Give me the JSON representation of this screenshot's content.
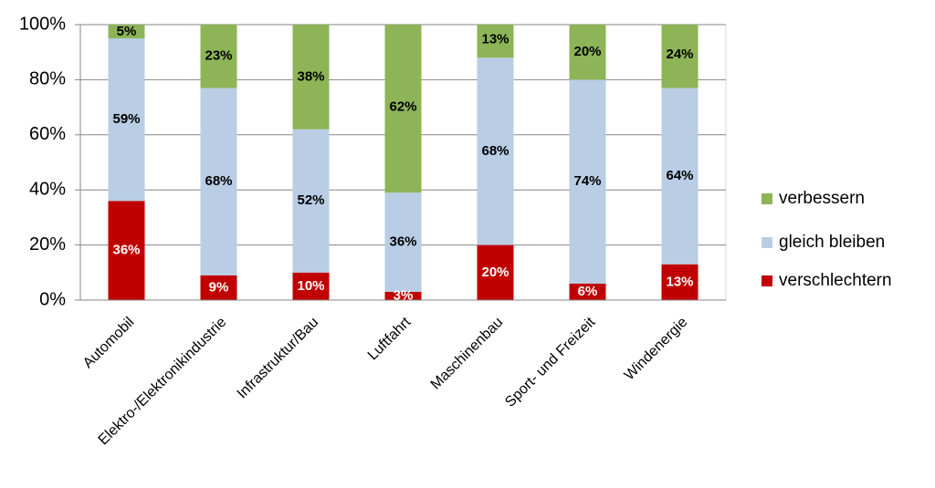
{
  "chart_data": {
    "type": "stacked_bar",
    "categories": [
      "Automobil",
      "Elektro-/Elektronikindustrie",
      "Infrastruktur/Bau",
      "Luftfahrt",
      "Maschinenbau",
      "Sport- und Freizeit",
      "Windenergie"
    ],
    "series": [
      {
        "name": "verschlechtern",
        "color": "#c00000",
        "values": [
          36,
          9,
          10,
          3,
          20,
          6,
          13
        ],
        "value_labels": [
          "36%",
          "9%",
          "10%",
          "3%",
          "20%",
          "6%",
          "13%"
        ]
      },
      {
        "name": "gleich bleiben",
        "color": "#b9cde5",
        "values": [
          59,
          68,
          52,
          36,
          68,
          74,
          64
        ],
        "value_labels": [
          "59%",
          "68%",
          "52%",
          "36%",
          "68%",
          "74%",
          "64%"
        ]
      },
      {
        "name": "verbessern",
        "color": "#8db457",
        "values": [
          5,
          23,
          38,
          62,
          13,
          20,
          24
        ],
        "value_labels": [
          "5%",
          "23%",
          "38%",
          "62%",
          "13%",
          "20%",
          "24%"
        ]
      }
    ],
    "ylim": [
      0,
      100
    ],
    "yticks": [
      {
        "value": 0,
        "label": "0%"
      },
      {
        "value": 20,
        "label": "20%"
      },
      {
        "value": 40,
        "label": "40%"
      },
      {
        "value": 60,
        "label": "60%"
      },
      {
        "value": 80,
        "label": "80%"
      },
      {
        "value": 100,
        "label": "100%"
      }
    ],
    "grid": true,
    "legend": "right"
  }
}
